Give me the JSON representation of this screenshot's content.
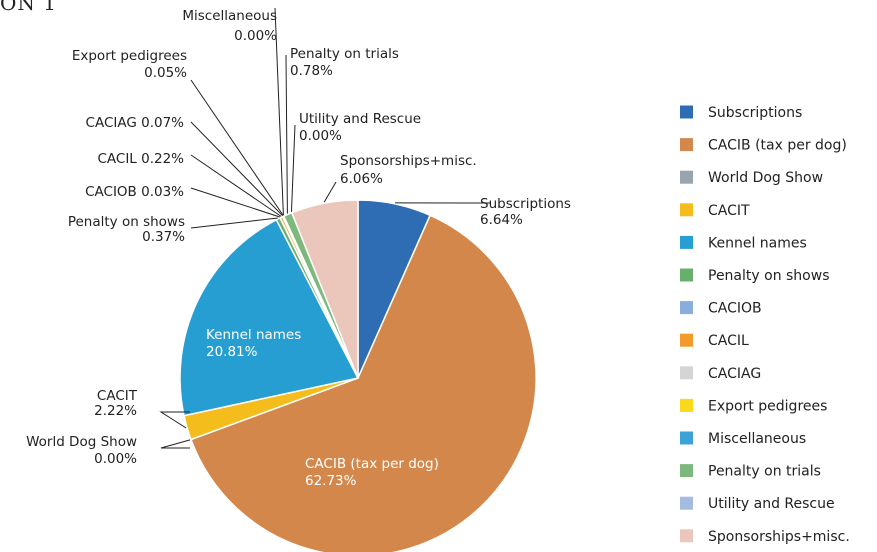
{
  "page_title": "ON 1",
  "chart_data": {
    "type": "pie",
    "title": "",
    "slices": [
      {
        "label": "Subscriptions",
        "value": 6.64,
        "value_text": "6.64%",
        "color": "#2e6db4"
      },
      {
        "label": "CACIB (tax per dog)",
        "value": 62.73,
        "value_text": "62.73%",
        "color": "#d4874b"
      },
      {
        "label": "World Dog Show",
        "value": 0.0,
        "value_text": "0.00%",
        "color": "#98a4ae"
      },
      {
        "label": "CACIT",
        "value": 2.22,
        "value_text": "2.22%",
        "color": "#f5bd1c"
      },
      {
        "label": "Kennel names",
        "value": 20.81,
        "value_text": "20.81%",
        "color": "#279ed1"
      },
      {
        "label": "Penalty on shows",
        "value": 0.37,
        "value_text": "0.37%",
        "color": "#67b06b"
      },
      {
        "label": "CACIOB",
        "value": 0.03,
        "value_text": "0.03%",
        "color": "#88aedc"
      },
      {
        "label": "CACIL",
        "value": 0.22,
        "value_text": "0.22%",
        "color": "#f29b2a"
      },
      {
        "label": "CACIAG",
        "value": 0.07,
        "value_text": "0.07%",
        "color": "#d5d5d5"
      },
      {
        "label": "Export pedigrees",
        "value": 0.05,
        "value_text": "0.05%",
        "color": "#fad91c"
      },
      {
        "label": "Miscellaneous",
        "value": 0.0,
        "value_text": "0.00%",
        "color": "#3da2d6"
      },
      {
        "label": "Penalty on trials",
        "value": 0.78,
        "value_text": "0.78%",
        "color": "#7db87c"
      },
      {
        "label": "Utility and Rescue",
        "value": 0.0,
        "value_text": "0.00%",
        "color": "#a4bce2"
      },
      {
        "label": "Sponsorships+misc.",
        "value": 6.06,
        "value_text": "6.06%",
        "color": "#ebc6ba"
      }
    ],
    "legend_position": "right"
  }
}
